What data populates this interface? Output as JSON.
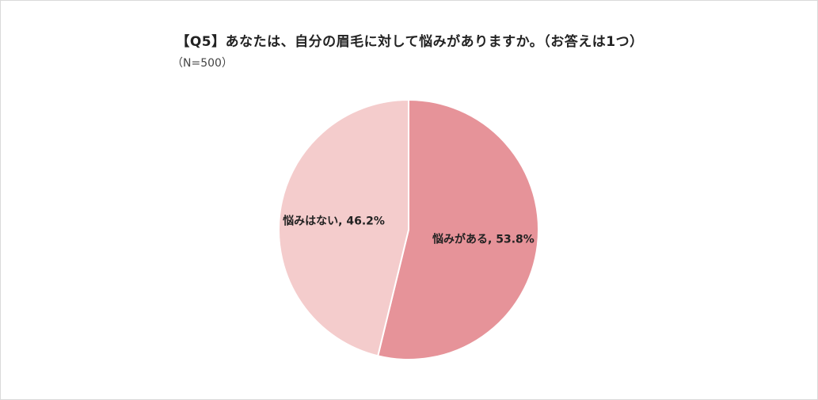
{
  "title": "【Q5】あなたは、自分の眉毛に対して悩みがありますか。（お答えは1つ）",
  "subtitle": "（N=500）",
  "chart_data": {
    "type": "pie",
    "title": "【Q5】あなたは、自分の眉毛に対して悩みがありますか。（お答えは1つ）",
    "subtitle": "（N=500）",
    "legend": "none",
    "slices": [
      {
        "label": "悩みがある",
        "value": 53.8,
        "display": "悩みがある, 53.8%",
        "color": "#e69399"
      },
      {
        "label": "悩みはない",
        "value": 46.2,
        "display": "悩みはない, 46.2%",
        "color": "#f4cccc"
      }
    ]
  }
}
